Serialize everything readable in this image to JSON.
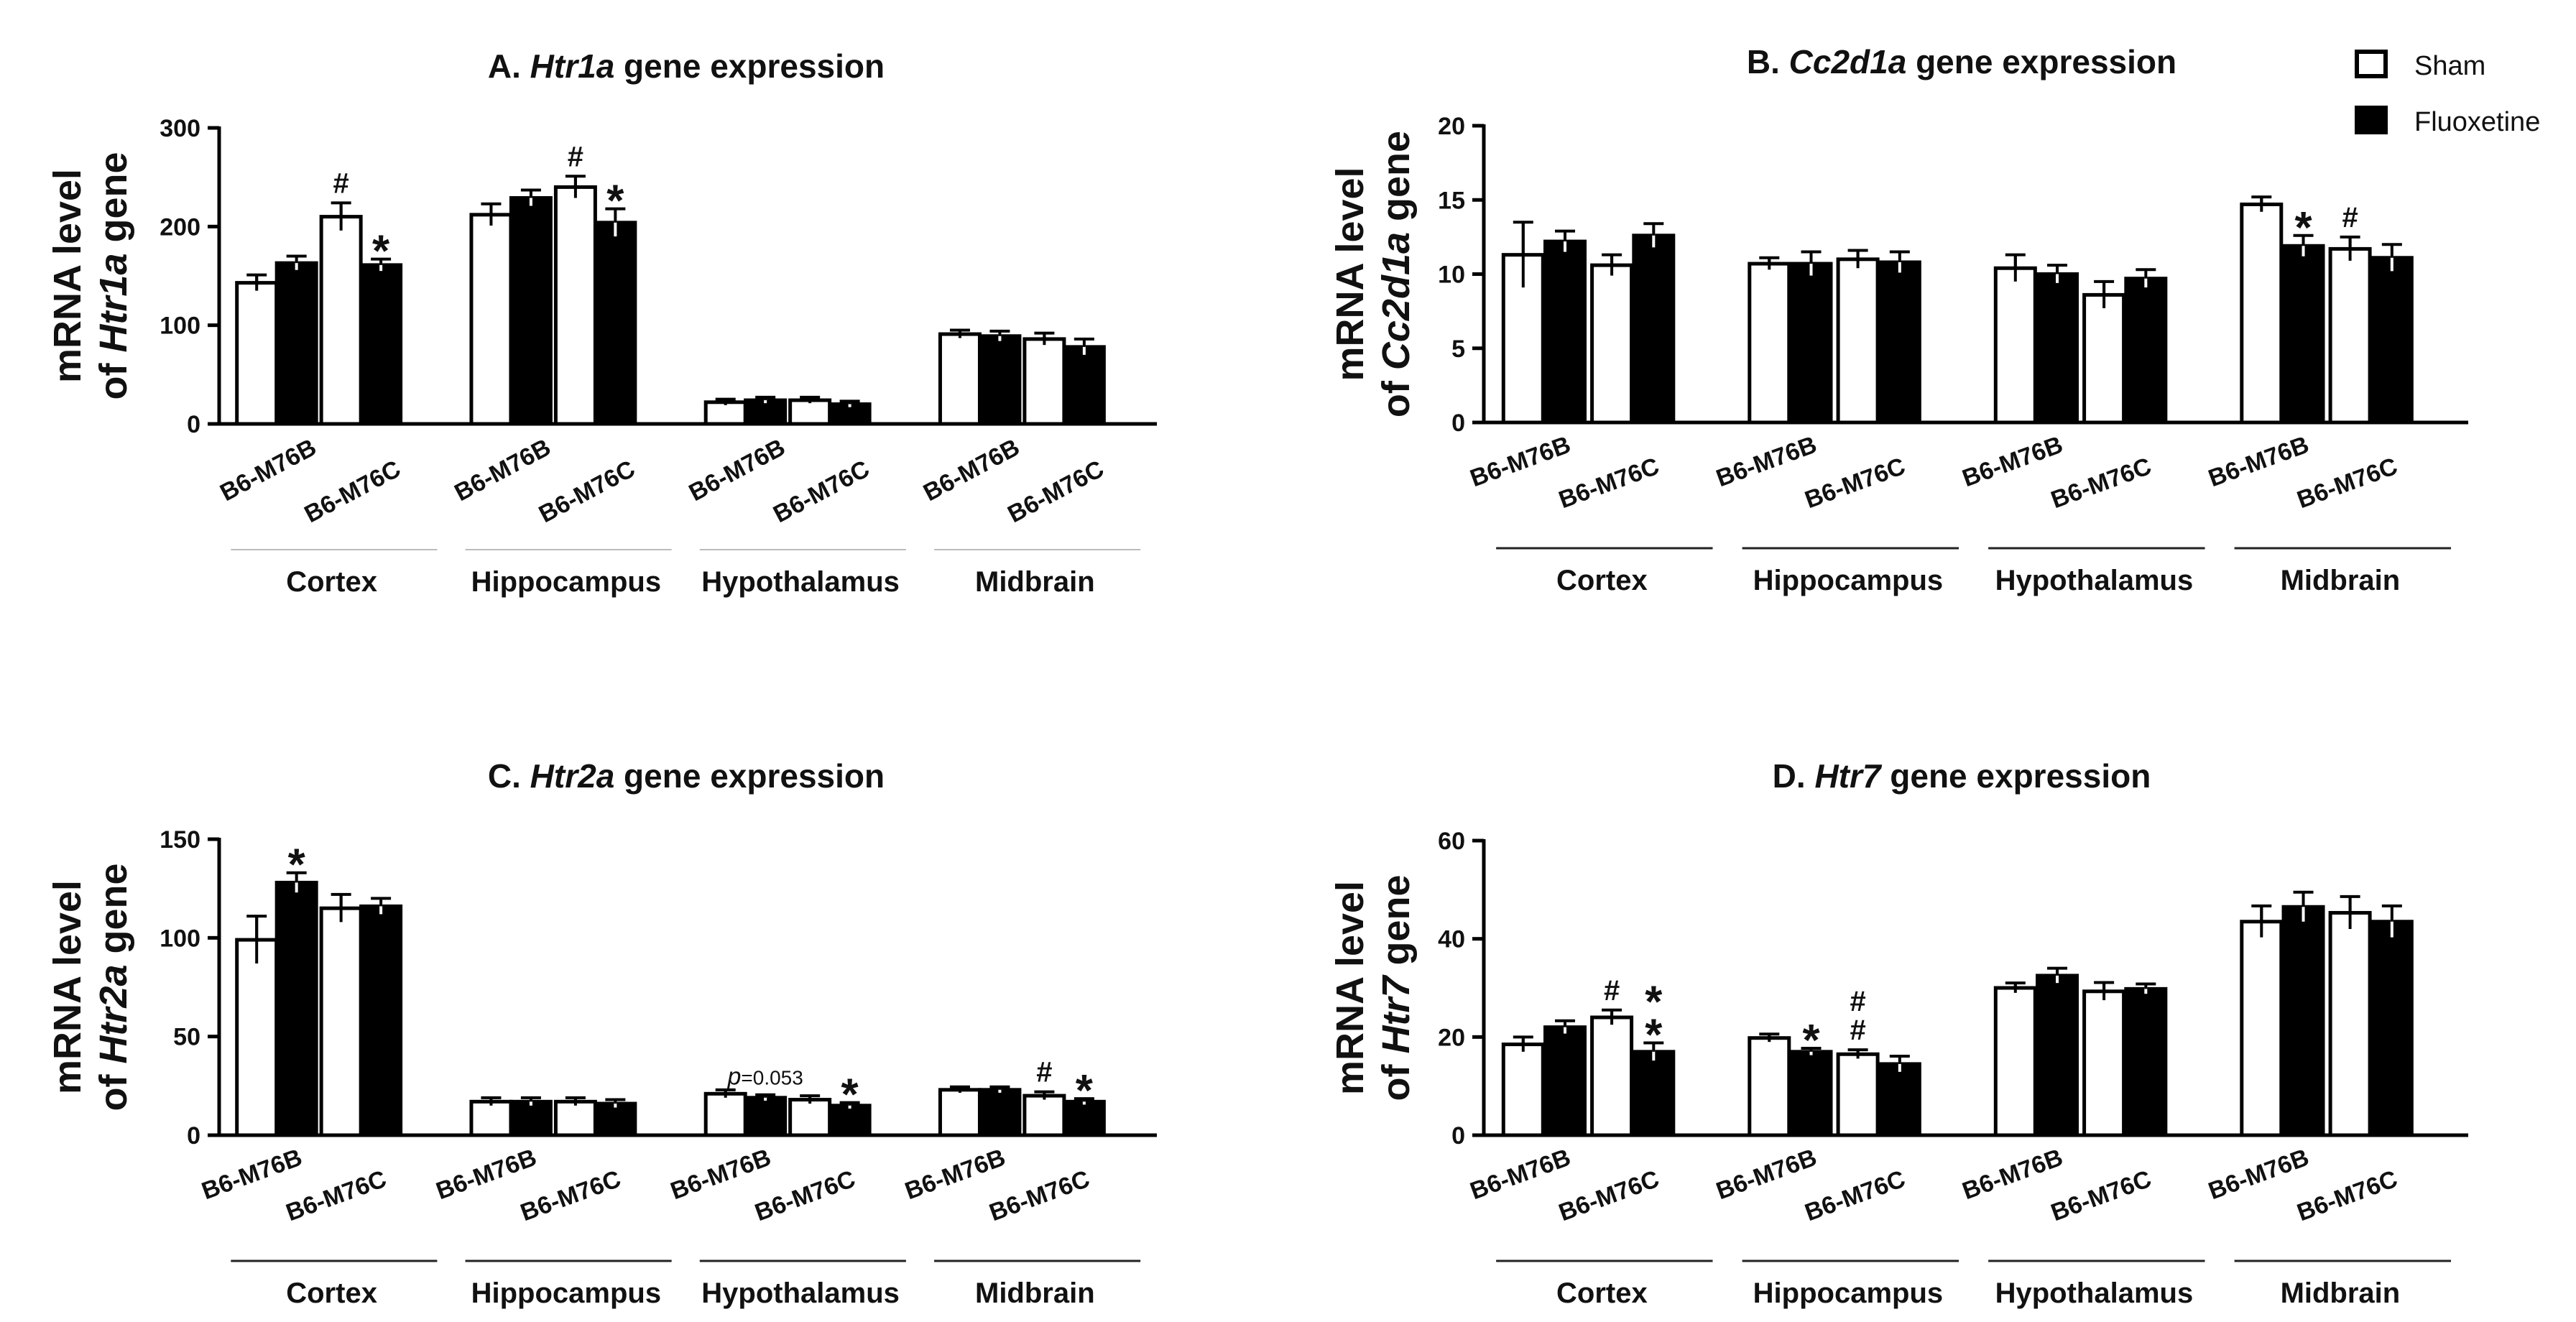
{
  "legend": {
    "series": [
      {
        "name": "Sham",
        "fill": "#ffffff"
      },
      {
        "name": "Fluoxetine",
        "fill": "#000000"
      }
    ]
  },
  "chart_data": [
    {
      "type": "bar",
      "panel": "A",
      "title": {
        "prefix": "A. ",
        "gene": "Htr1a",
        "suffix": " gene expression"
      },
      "ylabel": {
        "line1": "mRNA level",
        "line2_prefix": "of ",
        "gene": "Htr1a",
        "line2_suffix": " gene"
      },
      "ylim": [
        0,
        300
      ],
      "yticks": [
        0,
        100,
        200,
        300
      ],
      "group_line_style": "light",
      "groups": [
        {
          "label": "Cortex",
          "strains": [
            "B6-M76B",
            "B6-M76C"
          ],
          "bars": [
            {
              "series": "Sham",
              "value": 143,
              "err": 8,
              "marks": []
            },
            {
              "series": "Fluoxetine",
              "value": 163,
              "err": 7,
              "marks": []
            },
            {
              "series": "Sham",
              "value": 210,
              "err": 14,
              "marks": [
                "#"
              ]
            },
            {
              "series": "Fluoxetine",
              "value": 161,
              "err": 6,
              "marks": [
                "*"
              ]
            }
          ]
        },
        {
          "label": "Hippocampus",
          "strains": [
            "B6-M76B",
            "B6-M76C"
          ],
          "bars": [
            {
              "series": "Sham",
              "value": 212,
              "err": 11,
              "marks": []
            },
            {
              "series": "Fluoxetine",
              "value": 229,
              "err": 8,
              "marks": []
            },
            {
              "series": "Sham",
              "value": 240,
              "err": 11,
              "marks": [
                "#"
              ]
            },
            {
              "series": "Fluoxetine",
              "value": 204,
              "err": 14,
              "marks": [
                "*"
              ]
            }
          ]
        },
        {
          "label": "Hypothalamus",
          "strains": [
            "B6-M76B",
            "B6-M76C"
          ],
          "bars": [
            {
              "series": "Sham",
              "value": 22,
              "err": 3,
              "marks": []
            },
            {
              "series": "Fluoxetine",
              "value": 24,
              "err": 3,
              "marks": []
            },
            {
              "series": "Sham",
              "value": 24,
              "err": 3,
              "marks": []
            },
            {
              "series": "Fluoxetine",
              "value": 20,
              "err": 3,
              "marks": []
            }
          ]
        },
        {
          "label": "Midbrain",
          "strains": [
            "B6-M76B",
            "B6-M76C"
          ],
          "bars": [
            {
              "series": "Sham",
              "value": 91,
              "err": 4,
              "marks": []
            },
            {
              "series": "Fluoxetine",
              "value": 89,
              "err": 5,
              "marks": []
            },
            {
              "series": "Sham",
              "value": 86,
              "err": 6,
              "marks": []
            },
            {
              "series": "Fluoxetine",
              "value": 78,
              "err": 8,
              "marks": []
            }
          ]
        }
      ]
    },
    {
      "type": "bar",
      "panel": "B",
      "title": {
        "prefix": "B. ",
        "gene": "Cc2d1a",
        "suffix": " gene expression"
      },
      "ylabel": {
        "line1": "mRNA level",
        "line2_prefix": "of ",
        "gene": "Cc2d1a",
        "line2_suffix": " gene"
      },
      "ylim": [
        0,
        20
      ],
      "yticks": [
        0,
        5,
        10,
        15,
        20
      ],
      "group_line_style": "dark",
      "groups": [
        {
          "label": "Cortex",
          "strains": [
            "B6-M76B",
            "B6-M76C"
          ],
          "bars": [
            {
              "series": "Sham",
              "value": 11.3,
              "err": 2.2,
              "marks": []
            },
            {
              "series": "Fluoxetine",
              "value": 12.2,
              "err": 0.7,
              "marks": []
            },
            {
              "series": "Sham",
              "value": 10.6,
              "err": 0.7,
              "marks": []
            },
            {
              "series": "Fluoxetine",
              "value": 12.6,
              "err": 0.8,
              "marks": []
            }
          ]
        },
        {
          "label": "Hippocampus",
          "strains": [
            "B6-M76B",
            "B6-M76C"
          ],
          "bars": [
            {
              "series": "Sham",
              "value": 10.7,
              "err": 0.4,
              "marks": []
            },
            {
              "series": "Fluoxetine",
              "value": 10.7,
              "err": 0.8,
              "marks": []
            },
            {
              "series": "Sham",
              "value": 11.0,
              "err": 0.6,
              "marks": []
            },
            {
              "series": "Fluoxetine",
              "value": 10.8,
              "err": 0.7,
              "marks": []
            }
          ]
        },
        {
          "label": "Hypothalamus",
          "strains": [
            "B6-M76B",
            "B6-M76C"
          ],
          "bars": [
            {
              "series": "Sham",
              "value": 10.4,
              "err": 0.9,
              "marks": []
            },
            {
              "series": "Fluoxetine",
              "value": 10.0,
              "err": 0.6,
              "marks": []
            },
            {
              "series": "Sham",
              "value": 8.6,
              "err": 0.9,
              "marks": []
            },
            {
              "series": "Fluoxetine",
              "value": 9.7,
              "err": 0.6,
              "marks": []
            }
          ]
        },
        {
          "label": "Midbrain",
          "strains": [
            "B6-M76B",
            "B6-M76C"
          ],
          "bars": [
            {
              "series": "Sham",
              "value": 14.7,
              "err": 0.5,
              "marks": []
            },
            {
              "series": "Fluoxetine",
              "value": 11.9,
              "err": 0.7,
              "marks": [
                "*"
              ]
            },
            {
              "series": "Sham",
              "value": 11.7,
              "err": 0.8,
              "marks": [
                "#"
              ]
            },
            {
              "series": "Fluoxetine",
              "value": 11.1,
              "err": 0.9,
              "marks": []
            }
          ]
        }
      ]
    },
    {
      "type": "bar",
      "panel": "C",
      "title": {
        "prefix": "C. ",
        "gene": "Htr2a",
        "suffix": " gene expression"
      },
      "ylabel": {
        "line1": "mRNA level",
        "line2_prefix": "of ",
        "gene": "Htr2a",
        "line2_suffix": " gene"
      },
      "ylim": [
        0,
        150
      ],
      "yticks": [
        0,
        50,
        100,
        150
      ],
      "group_line_style": "dark",
      "annotations": [
        {
          "p_label": "p",
          "p_text": "=0.053",
          "group": 2,
          "bar": 1
        }
      ],
      "groups": [
        {
          "label": "Cortex",
          "strains": [
            "B6-M76B",
            "B6-M76C"
          ],
          "bars": [
            {
              "series": "Sham",
              "value": 99,
              "err": 12,
              "marks": []
            },
            {
              "series": "Fluoxetine",
              "value": 128,
              "err": 5,
              "marks": [
                "*"
              ]
            },
            {
              "series": "Sham",
              "value": 115,
              "err": 7,
              "marks": []
            },
            {
              "series": "Fluoxetine",
              "value": 116,
              "err": 4,
              "marks": []
            }
          ]
        },
        {
          "label": "Hippocampus",
          "strains": [
            "B6-M76B",
            "B6-M76C"
          ],
          "bars": [
            {
              "series": "Sham",
              "value": 17,
              "err": 2,
              "marks": []
            },
            {
              "series": "Fluoxetine",
              "value": 17,
              "err": 2,
              "marks": []
            },
            {
              "series": "Sham",
              "value": 17,
              "err": 2,
              "marks": []
            },
            {
              "series": "Fluoxetine",
              "value": 16,
              "err": 2,
              "marks": []
            }
          ]
        },
        {
          "label": "Hypothalamus",
          "strains": [
            "B6-M76B",
            "B6-M76C"
          ],
          "bars": [
            {
              "series": "Sham",
              "value": 21,
              "err": 2,
              "marks": []
            },
            {
              "series": "Fluoxetine",
              "value": 19,
              "err": 1.5,
              "marks": []
            },
            {
              "series": "Sham",
              "value": 18,
              "err": 2,
              "marks": []
            },
            {
              "series": "Fluoxetine",
              "value": 15,
              "err": 1.5,
              "marks": [
                "*"
              ]
            }
          ]
        },
        {
          "label": "Midbrain",
          "strains": [
            "B6-M76B",
            "B6-M76C"
          ],
          "bars": [
            {
              "series": "Sham",
              "value": 23,
              "err": 1.5,
              "marks": []
            },
            {
              "series": "Fluoxetine",
              "value": 23,
              "err": 1.5,
              "marks": []
            },
            {
              "series": "Sham",
              "value": 20,
              "err": 2,
              "marks": [
                "#"
              ]
            },
            {
              "series": "Fluoxetine",
              "value": 17,
              "err": 1.5,
              "marks": [
                "*"
              ]
            }
          ]
        }
      ]
    },
    {
      "type": "bar",
      "panel": "D",
      "title": {
        "prefix": "D. ",
        "gene": "Htr7",
        "suffix": " gene expression"
      },
      "ylabel": {
        "line1": "mRNA level",
        "line2_prefix": "of ",
        "gene": "Htr7",
        "line2_suffix": " gene"
      },
      "ylim": [
        0,
        60
      ],
      "yticks": [
        0,
        20,
        40,
        60
      ],
      "group_line_style": "dark",
      "groups": [
        {
          "label": "Cortex",
          "strains": [
            "B6-M76B",
            "B6-M76C"
          ],
          "bars": [
            {
              "series": "Sham",
              "value": 18.5,
              "err": 1.5,
              "marks": []
            },
            {
              "series": "Fluoxetine",
              "value": 22,
              "err": 1.3,
              "marks": []
            },
            {
              "series": "Sham",
              "value": 24,
              "err": 1.5,
              "marks": [
                "#"
              ]
            },
            {
              "series": "Fluoxetine",
              "value": 17,
              "err": 1.8,
              "marks": [
                "*",
                "*"
              ]
            }
          ]
        },
        {
          "label": "Hippocampus",
          "strains": [
            "B6-M76B",
            "B6-M76C"
          ],
          "bars": [
            {
              "series": "Sham",
              "value": 19.8,
              "err": 0.8,
              "marks": []
            },
            {
              "series": "Fluoxetine",
              "value": 17,
              "err": 0.7,
              "marks": [
                "*"
              ]
            },
            {
              "series": "Sham",
              "value": 16.5,
              "err": 0.9,
              "marks": [
                "#",
                "#"
              ]
            },
            {
              "series": "Fluoxetine",
              "value": 14.5,
              "err": 1.6,
              "marks": []
            }
          ]
        },
        {
          "label": "Hypothalamus",
          "strains": [
            "B6-M76B",
            "B6-M76C"
          ],
          "bars": [
            {
              "series": "Sham",
              "value": 30,
              "err": 1,
              "marks": []
            },
            {
              "series": "Fluoxetine",
              "value": 32.5,
              "err": 1.5,
              "marks": []
            },
            {
              "series": "Sham",
              "value": 29.3,
              "err": 1.8,
              "marks": []
            },
            {
              "series": "Fluoxetine",
              "value": 29.8,
              "err": 1,
              "marks": []
            }
          ]
        },
        {
          "label": "Midbrain",
          "strains": [
            "B6-M76B",
            "B6-M76C"
          ],
          "bars": [
            {
              "series": "Sham",
              "value": 43.5,
              "err": 3.2,
              "marks": []
            },
            {
              "series": "Fluoxetine",
              "value": 46.5,
              "err": 3,
              "marks": []
            },
            {
              "series": "Sham",
              "value": 45.3,
              "err": 3.3,
              "marks": []
            },
            {
              "series": "Fluoxetine",
              "value": 43.5,
              "err": 3.2,
              "marks": []
            }
          ]
        }
      ]
    }
  ]
}
